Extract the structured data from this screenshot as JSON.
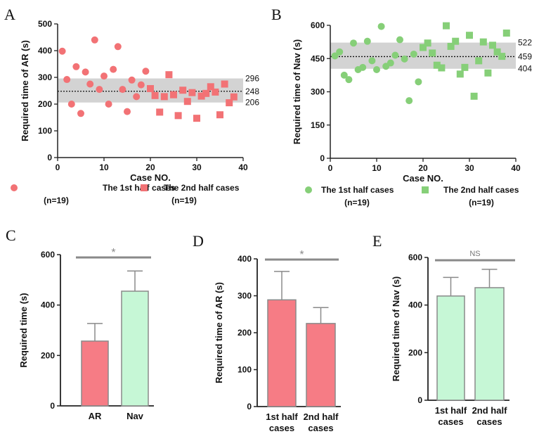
{
  "colors": {
    "ar_pink": "#F27275",
    "ar_bar": "#F67C85",
    "nav_green": "#86CF78",
    "nav_bar": "#C6F7D6",
    "band": "#D3D3D3",
    "axis": "#222222",
    "sig_line": "#8A8A8A"
  },
  "chart_data": [
    {
      "panel": "A",
      "type": "scatter",
      "xlabel": "Case NO.",
      "ylabel": "Required time of AR  (s)",
      "xlim": [
        0,
        40
      ],
      "ylim": [
        0,
        500
      ],
      "xticks": [
        "0",
        "10",
        "20",
        "30",
        "40"
      ],
      "yticks": [
        "0",
        "100",
        "200",
        "300",
        "400",
        "500"
      ],
      "band": {
        "low": 206,
        "mean": 248,
        "high": 296,
        "labels": [
          "296",
          "248",
          "206"
        ]
      },
      "series": [
        {
          "name": "The 1st half cases",
          "n_label": "(n=19)",
          "marker": "circle",
          "points": [
            [
              1,
              398
            ],
            [
              2,
              292
            ],
            [
              3,
              200
            ],
            [
              4,
              340
            ],
            [
              5,
              165
            ],
            [
              6,
              320
            ],
            [
              7,
              275
            ],
            [
              8,
              440
            ],
            [
              9,
              255
            ],
            [
              10,
              305
            ],
            [
              11,
              200
            ],
            [
              12,
              330
            ],
            [
              13,
              415
            ],
            [
              14,
              255
            ],
            [
              15,
              172
            ],
            [
              16,
              290
            ],
            [
              17,
              228
            ],
            [
              18,
              272
            ],
            [
              19,
              323
            ]
          ]
        },
        {
          "name": "The 2nd half cases",
          "n_label": "(n=19)",
          "marker": "square",
          "points": [
            [
              20,
              258
            ],
            [
              21,
              232
            ],
            [
              22,
              170
            ],
            [
              23,
              228
            ],
            [
              24,
              310
            ],
            [
              25,
              235
            ],
            [
              26,
              157
            ],
            [
              27,
              252
            ],
            [
              28,
              210
            ],
            [
              29,
              243
            ],
            [
              30,
              147
            ],
            [
              31,
              230
            ],
            [
              32,
              240
            ],
            [
              33,
              265
            ],
            [
              34,
              245
            ],
            [
              35,
              160
            ],
            [
              36,
              275
            ],
            [
              37,
              205
            ],
            [
              38,
              227
            ]
          ]
        }
      ]
    },
    {
      "panel": "B",
      "type": "scatter",
      "xlabel": "Case NO.",
      "ylabel": "Required time of Nav  (s)",
      "xlim": [
        0,
        40
      ],
      "ylim": [
        0,
        600
      ],
      "xticks": [
        "0",
        "10",
        "20",
        "30",
        "40"
      ],
      "yticks": [
        "0",
        "150",
        "300",
        "450",
        "600"
      ],
      "band": {
        "low": 404,
        "mean": 459,
        "high": 522,
        "labels": [
          "522",
          "459",
          "404"
        ]
      },
      "series": [
        {
          "name": "The 1st half cases",
          "n_label": "(n=19)",
          "marker": "circle",
          "points": [
            [
              1,
              462
            ],
            [
              2,
              480
            ],
            [
              3,
              375
            ],
            [
              4,
              355
            ],
            [
              5,
              520
            ],
            [
              6,
              400
            ],
            [
              7,
              410
            ],
            [
              8,
              528
            ],
            [
              9,
              440
            ],
            [
              10,
              400
            ],
            [
              11,
              595
            ],
            [
              12,
              415
            ],
            [
              13,
              430
            ],
            [
              14,
              465
            ],
            [
              15,
              535
            ],
            [
              16,
              448
            ],
            [
              17,
              260
            ],
            [
              18,
              470
            ],
            [
              19,
              345
            ]
          ]
        },
        {
          "name": "The 2nd half cases",
          "n_label": "(n=19)",
          "marker": "square",
          "points": [
            [
              20,
              500
            ],
            [
              21,
              520
            ],
            [
              22,
              475
            ],
            [
              23,
              420
            ],
            [
              24,
              408
            ],
            [
              25,
              598
            ],
            [
              26,
              505
            ],
            [
              27,
              528
            ],
            [
              28,
              380
            ],
            [
              29,
              410
            ],
            [
              30,
              555
            ],
            [
              31,
              280
            ],
            [
              32,
              440
            ],
            [
              33,
              525
            ],
            [
              34,
              385
            ],
            [
              35,
              510
            ],
            [
              36,
              480
            ],
            [
              37,
              460
            ],
            [
              38,
              565
            ]
          ]
        }
      ]
    },
    {
      "panel": "C",
      "type": "bar",
      "ylabel": "Required  time (s)",
      "ylim": [
        0,
        600
      ],
      "yticks": [
        "0",
        "200",
        "400",
        "600"
      ],
      "categories": [
        "AR",
        "Nav"
      ],
      "values": [
        257,
        455
      ],
      "errors": [
        70,
        80
      ],
      "significance": "*"
    },
    {
      "panel": "D",
      "type": "bar",
      "ylabel": "Required  time of AR (s)",
      "ylim": [
        0,
        400
      ],
      "yticks": [
        "0",
        "100",
        "200",
        "300",
        "400"
      ],
      "categories": [
        [
          "1st half",
          "cases"
        ],
        [
          "2nd half",
          "cases"
        ]
      ],
      "values": [
        289,
        225
      ],
      "errors": [
        77,
        43
      ],
      "significance": "*"
    },
    {
      "panel": "E",
      "type": "bar",
      "ylabel": "Required time of Nav (s)",
      "ylim": [
        0,
        600
      ],
      "yticks": [
        "0",
        "200",
        "400",
        "600"
      ],
      "categories": [
        [
          "1st half",
          "cases"
        ],
        [
          "2nd half",
          "cases"
        ]
      ],
      "values": [
        438,
        473
      ],
      "errors": [
        78,
        77
      ],
      "significance": "NS"
    }
  ]
}
